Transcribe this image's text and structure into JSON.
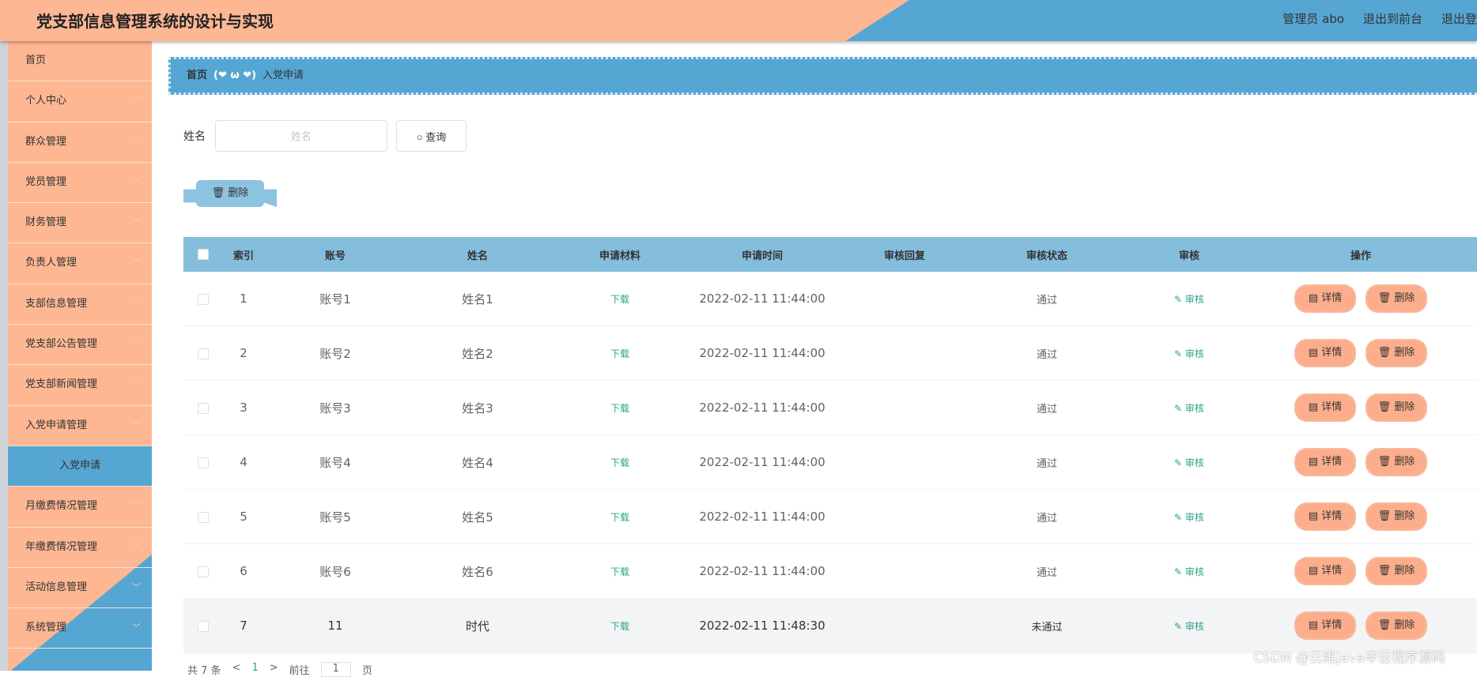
{
  "header": {
    "title": "党支部信息管理系统的设计与实现",
    "user": "管理员 abo",
    "to_front": "退出到前台",
    "logout": "退出登"
  },
  "sidebar": {
    "items": [
      {
        "label": "首页",
        "expandable": false
      },
      {
        "label": "个人中心",
        "expandable": true
      },
      {
        "label": "群众管理",
        "expandable": true
      },
      {
        "label": "党员管理",
        "expandable": true
      },
      {
        "label": "财务管理",
        "expandable": true
      },
      {
        "label": "负责人管理",
        "expandable": true
      },
      {
        "label": "支部信息管理",
        "expandable": true
      },
      {
        "label": "党支部公告管理",
        "expandable": true
      },
      {
        "label": "党支部新闻管理",
        "expandable": true
      },
      {
        "label": "入党申请管理",
        "expandable": true
      },
      {
        "label": "入党申请",
        "active": true
      },
      {
        "label": "月缴费情况管理",
        "expandable": true
      },
      {
        "label": "年缴费情况管理",
        "expandable": true
      },
      {
        "label": "活动信息管理",
        "expandable": true
      },
      {
        "label": "系统管理",
        "expandable": true
      }
    ]
  },
  "breadcrumb": {
    "home": "首页",
    "separator": "(❤ ω ❤)",
    "current": "入党申请"
  },
  "search": {
    "label": "姓名",
    "placeholder": "姓名",
    "value": "",
    "button": "查询"
  },
  "toolbar": {
    "delete": "删除"
  },
  "table": {
    "columns": [
      "索引",
      "账号",
      "姓名",
      "申请材料",
      "申请时间",
      "审核回复",
      "审核状态",
      "审核",
      "操作"
    ],
    "rows": [
      {
        "index": "1",
        "account": "账号1",
        "name": "姓名1",
        "material": "下载",
        "time": "2022-02-11 11:44:00",
        "reply": "",
        "status": "通过",
        "review": "审核"
      },
      {
        "index": "2",
        "account": "账号2",
        "name": "姓名2",
        "material": "下载",
        "time": "2022-02-11 11:44:00",
        "reply": "",
        "status": "通过",
        "review": "审核"
      },
      {
        "index": "3",
        "account": "账号3",
        "name": "姓名3",
        "material": "下载",
        "time": "2022-02-11 11:44:00",
        "reply": "",
        "status": "通过",
        "review": "审核"
      },
      {
        "index": "4",
        "account": "账号4",
        "name": "姓名4",
        "material": "下载",
        "time": "2022-02-11 11:44:00",
        "reply": "",
        "status": "通过",
        "review": "审核"
      },
      {
        "index": "5",
        "account": "账号5",
        "name": "姓名5",
        "material": "下载",
        "time": "2022-02-11 11:44:00",
        "reply": "",
        "status": "通过",
        "review": "审核"
      },
      {
        "index": "6",
        "account": "账号6",
        "name": "姓名6",
        "material": "下载",
        "time": "2022-02-11 11:44:00",
        "reply": "",
        "status": "通过",
        "review": "审核"
      },
      {
        "index": "7",
        "account": "11",
        "name": "时代",
        "material": "下载",
        "time": "2022-02-11 11:48:30",
        "reply": "",
        "status": "未通过",
        "review": "审核"
      }
    ],
    "detail_label": "详情",
    "delete_label": "删除"
  },
  "pagination": {
    "total": "共 7 条",
    "prev": "<",
    "page": "1",
    "next": ">",
    "goto": "前往",
    "goto_value": "1",
    "suffix": "页"
  },
  "watermark": "CSDN @云维Java毕设程序源码",
  "colors": {
    "peach": "#fdb793",
    "blue": "#55a6d3",
    "header_row": "#85bedd",
    "link": "#2aa58a"
  }
}
